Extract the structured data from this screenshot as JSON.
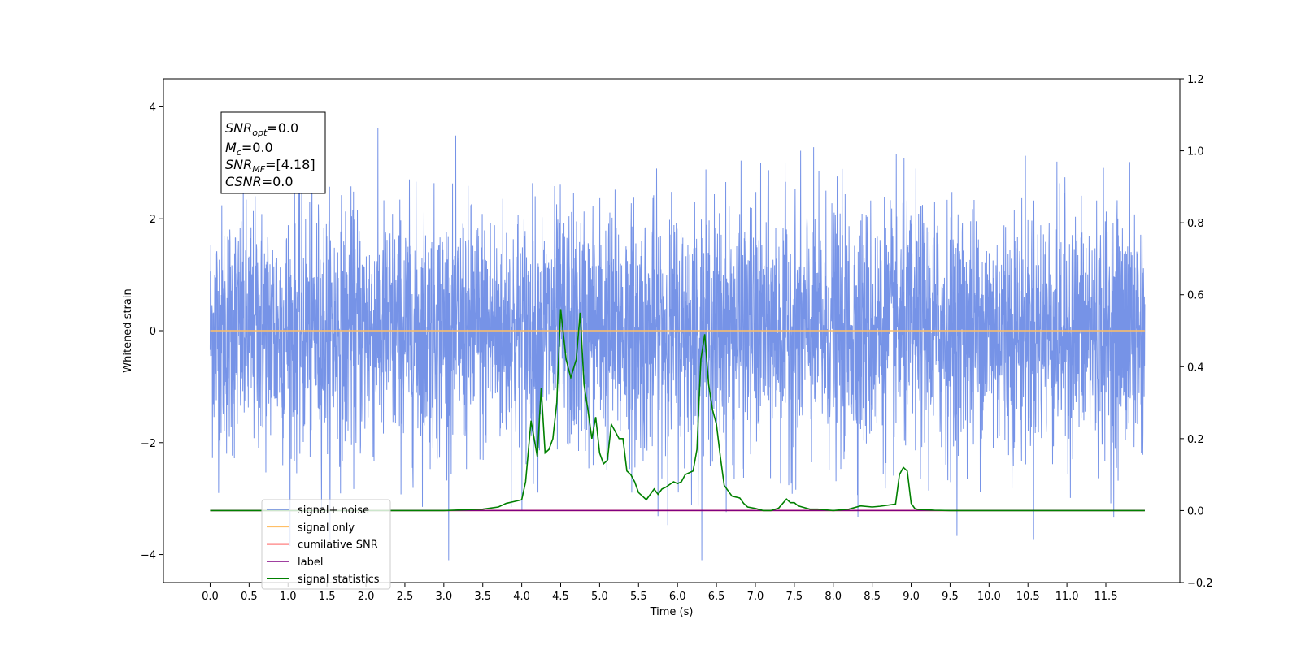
{
  "chart_data": {
    "type": "line",
    "xlabel": "Time (s)",
    "ylabel": "Whitened strain",
    "xlim": [
      -0.6,
      12.45
    ],
    "ylim": [
      -4.5,
      4.5
    ],
    "y2lim": [
      -0.2,
      1.2
    ],
    "x_ticks": [
      "0.0",
      "0.5",
      "1.0",
      "1.5",
      "2.0",
      "2.5",
      "3.0",
      "3.5",
      "4.0",
      "4.5",
      "5.0",
      "5.5",
      "6.0",
      "6.5",
      "7.0",
      "7.5",
      "8.0",
      "8.5",
      "9.0",
      "9.5",
      "10.0",
      "10.5",
      "11.0",
      "11.5"
    ],
    "y_ticks": [
      "4",
      "2",
      "0",
      "−2",
      "−4"
    ],
    "y2_ticks": [
      "1.2",
      "1.0",
      "0.8",
      "0.6",
      "0.4",
      "0.2",
      "0.0",
      "−0.2"
    ],
    "grid": false,
    "legend_position": "lower-left",
    "annotation": {
      "snr_opt": {
        "base": "SNR",
        "sub": "opt",
        "value": "=0.0"
      },
      "mc": {
        "base": "M",
        "sub": "c",
        "value": "=0.0"
      },
      "snr_mf": {
        "base": "SNR",
        "sub": "MF",
        "value": "=[4.18]"
      },
      "csnr": {
        "base": "CSNR",
        "sub": "",
        "value": "=0.0"
      }
    },
    "series": [
      {
        "name": "signal+ noise",
        "color": "#6f8de6",
        "axis": "left",
        "kind": "noise",
        "x_range": [
          0.0,
          12.0
        ],
        "amplitude_typical": 1.3,
        "amplitude_max": 4.1
      },
      {
        "name": "signal only",
        "color": "#ffbf66",
        "axis": "left",
        "x": [
          0.0,
          12.0
        ],
        "y": [
          0.0,
          0.0
        ]
      },
      {
        "name": "cumilative SNR",
        "color": "#ff0000",
        "axis": "right",
        "x": [
          0.0,
          12.0
        ],
        "y": [
          0.0,
          0.0
        ]
      },
      {
        "name": "label",
        "color": "#800080",
        "axis": "right",
        "x": [
          0.0,
          12.0
        ],
        "y": [
          0.0,
          0.0
        ]
      },
      {
        "name": "signal statistics",
        "color": "#008000",
        "axis": "right",
        "x": [
          0.0,
          0.5,
          1.0,
          1.5,
          2.0,
          2.5,
          3.0,
          3.25,
          3.5,
          3.7,
          3.8,
          3.9,
          4.0,
          4.05,
          4.12,
          4.2,
          4.25,
          4.3,
          4.35,
          4.4,
          4.45,
          4.5,
          4.57,
          4.63,
          4.7,
          4.75,
          4.8,
          4.85,
          4.9,
          4.95,
          5.0,
          5.05,
          5.1,
          5.15,
          5.2,
          5.25,
          5.3,
          5.35,
          5.4,
          5.45,
          5.5,
          5.55,
          5.6,
          5.7,
          5.75,
          5.8,
          5.85,
          5.95,
          6.0,
          6.05,
          6.1,
          6.2,
          6.25,
          6.3,
          6.35,
          6.4,
          6.45,
          6.5,
          6.55,
          6.6,
          6.7,
          6.8,
          6.85,
          6.9,
          7.0,
          7.1,
          7.2,
          7.3,
          7.4,
          7.45,
          7.5,
          7.55,
          7.6,
          7.7,
          7.8,
          8.0,
          8.2,
          8.35,
          8.5,
          8.6,
          8.8,
          8.85,
          8.9,
          8.95,
          9.0,
          9.05,
          9.1,
          9.3,
          9.5,
          10.0,
          11.0,
          12.0
        ],
        "y": [
          0.0,
          0.0,
          0.0,
          0.0,
          0.0,
          0.0,
          0.0,
          0.002,
          0.004,
          0.01,
          0.02,
          0.025,
          0.03,
          0.08,
          0.25,
          0.15,
          0.34,
          0.16,
          0.17,
          0.2,
          0.3,
          0.56,
          0.42,
          0.37,
          0.42,
          0.55,
          0.35,
          0.28,
          0.2,
          0.26,
          0.16,
          0.13,
          0.14,
          0.24,
          0.22,
          0.2,
          0.2,
          0.11,
          0.1,
          0.08,
          0.05,
          0.04,
          0.03,
          0.06,
          0.045,
          0.06,
          0.065,
          0.08,
          0.075,
          0.08,
          0.1,
          0.11,
          0.17,
          0.42,
          0.49,
          0.35,
          0.28,
          0.24,
          0.15,
          0.07,
          0.04,
          0.035,
          0.02,
          0.01,
          0.006,
          0.0,
          0.0,
          0.007,
          0.032,
          0.022,
          0.022,
          0.013,
          0.01,
          0.004,
          0.004,
          0.0,
          0.004,
          0.013,
          0.01,
          0.012,
          0.018,
          0.1,
          0.12,
          0.11,
          0.02,
          0.005,
          0.003,
          0.001,
          0.0,
          0.0,
          0.0,
          0.0
        ]
      }
    ]
  }
}
